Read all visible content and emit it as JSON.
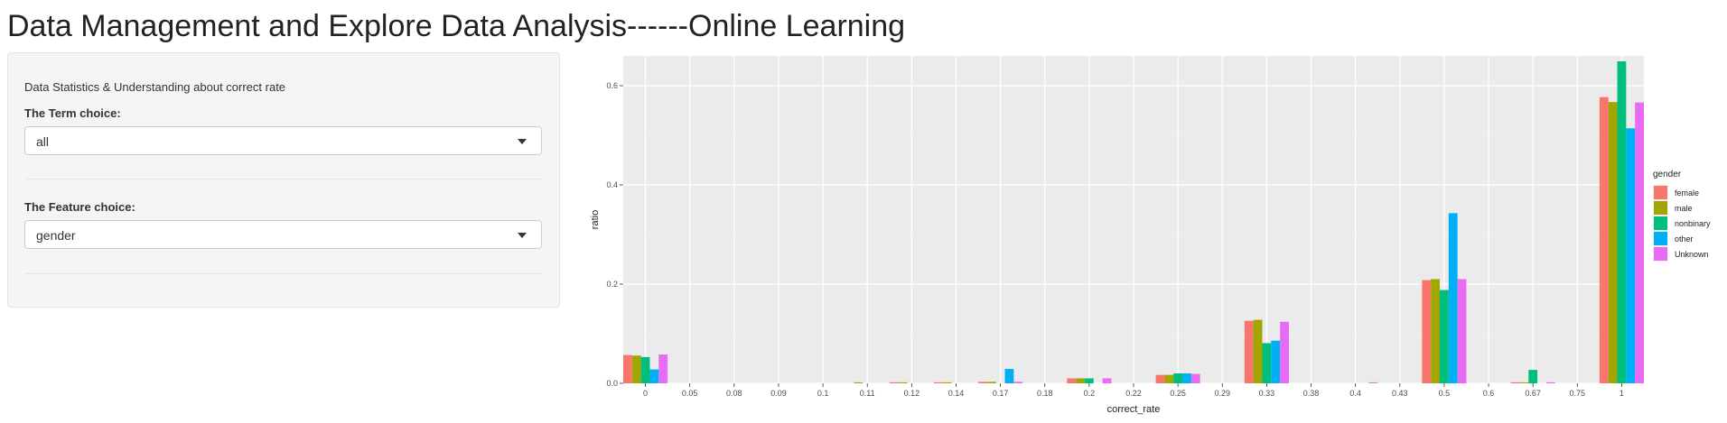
{
  "page": {
    "title": "Data Management and Explore Data Analysis------Online Learning"
  },
  "sidebar": {
    "subtitle": "Data Statistics & Understanding about correct rate",
    "term": {
      "label": "The Term choice:",
      "value": "all"
    },
    "feature": {
      "label": "The Feature choice:",
      "value": "gender"
    }
  },
  "chart_data": {
    "type": "bar",
    "xlabel": "correct_rate",
    "ylabel": "ratio",
    "ylim": [
      0,
      0.66
    ],
    "yticks": [
      "0.0",
      "0.2",
      "0.4",
      "0.6"
    ],
    "grid": true,
    "legend_position": "right",
    "legend_title": "gender",
    "categories": [
      "0",
      "0.05",
      "0.08",
      "0.09",
      "0.1",
      "0.11",
      "0.12",
      "0.14",
      "0.17",
      "0.18",
      "0.2",
      "0.22",
      "0.25",
      "0.29",
      "0.33",
      "0.38",
      "0.4",
      "0.43",
      "0.5",
      "0.6",
      "0.67",
      "0.75",
      "1"
    ],
    "series": [
      {
        "name": "female",
        "color": "#F8766D",
        "values": [
          0.057,
          0,
          0,
          0,
          0,
          0,
          0.002,
          0.002,
          0.003,
          0,
          0.01,
          0,
          0.017,
          0,
          0.126,
          0,
          0,
          0,
          0.208,
          0,
          0.002,
          0,
          0.577
        ]
      },
      {
        "name": "male",
        "color": "#A3A500",
        "values": [
          0.056,
          0,
          0,
          0,
          0,
          0.002,
          0.002,
          0.002,
          0.003,
          0,
          0.01,
          0,
          0.017,
          0,
          0.128,
          0,
          0,
          0,
          0.21,
          0,
          0.002,
          0,
          0.567
        ]
      },
      {
        "name": "nonbinary",
        "color": "#00BF7D",
        "values": [
          0.053,
          0,
          0,
          0,
          0,
          0,
          0,
          0,
          0,
          0,
          0.01,
          0,
          0.02,
          0,
          0.081,
          0,
          0,
          0,
          0.188,
          0,
          0.027,
          0,
          0.649
        ]
      },
      {
        "name": "other",
        "color": "#00B0F6",
        "values": [
          0.028,
          0,
          0,
          0,
          0,
          0,
          0,
          0,
          0.029,
          0,
          0,
          0,
          0.02,
          0,
          0.086,
          0,
          0,
          0,
          0.343,
          0,
          0,
          0,
          0.514
        ]
      },
      {
        "name": "Unknown",
        "color": "#E76BF3",
        "values": [
          0.058,
          0,
          0,
          0,
          0,
          0,
          0,
          0,
          0.003,
          0,
          0.01,
          0,
          0.019,
          0,
          0.124,
          0,
          0.002,
          0,
          0.21,
          0,
          0.002,
          0,
          0.566
        ]
      }
    ]
  }
}
